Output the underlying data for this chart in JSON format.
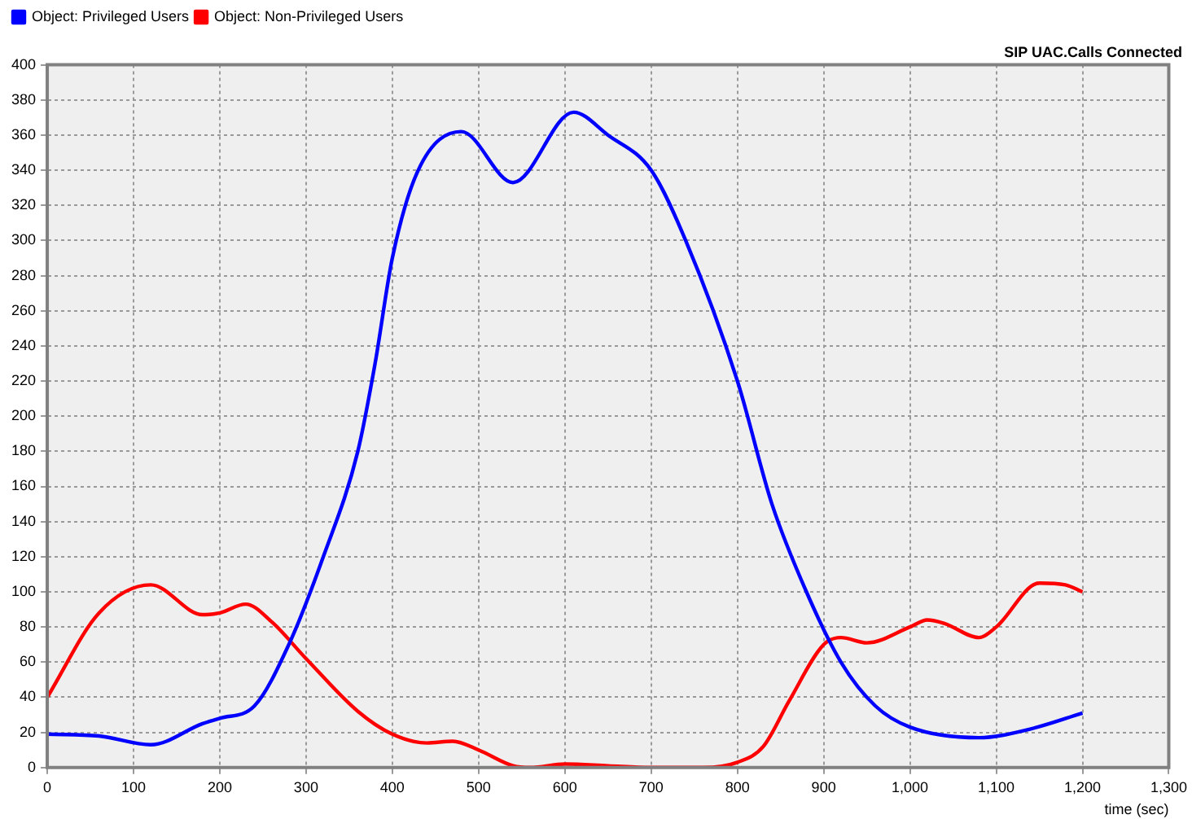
{
  "chart_data": {
    "type": "line",
    "title": "SIP UAC.Calls Connected",
    "xlabel": "time (sec)",
    "xlim": [
      0,
      1300
    ],
    "xticks": [
      0,
      100,
      200,
      300,
      400,
      500,
      600,
      700,
      800,
      900,
      {
        "value": 1000,
        "label": "1,000"
      },
      {
        "value": 1100,
        "label": "1,100"
      },
      {
        "value": 1200,
        "label": "1,200"
      },
      {
        "value": 1300,
        "label": "1,300"
      }
    ],
    "ylim": [
      0,
      400
    ],
    "yticks": [
      0,
      20,
      40,
      60,
      80,
      100,
      120,
      140,
      160,
      180,
      200,
      220,
      240,
      260,
      280,
      300,
      320,
      340,
      360,
      380,
      400
    ],
    "grid": true,
    "legend": "top left",
    "series": [
      {
        "name": "Object: Privileged Users",
        "color": "#0000ff",
        "x": [
          0,
          60,
          120,
          180,
          200,
          240,
          280,
          320,
          360,
          380,
          400,
          430,
          480,
          540,
          610,
          650,
          700,
          740,
          800,
          840,
          880,
          920,
          960,
          1000,
          1080,
          1140,
          1200
        ],
        "values": [
          19,
          18,
          13,
          25,
          28,
          35,
          70,
          120,
          180,
          230,
          290,
          340,
          362,
          333,
          373,
          360,
          340,
          300,
          220,
          150,
          100,
          60,
          35,
          23,
          17,
          22,
          31
        ]
      },
      {
        "name": "Object: Non-Privileged Users",
        "color": "#ff0000",
        "x": [
          0,
          60,
          120,
          180,
          200,
          230,
          260,
          300,
          360,
          400,
          440,
          470,
          500,
          540,
          560,
          600,
          650,
          700,
          760,
          800,
          830,
          860,
          900,
          920,
          950,
          1000,
          1020,
          1040,
          1080,
          1100,
          1150,
          1180,
          1200
        ],
        "values": [
          40,
          88,
          104,
          87,
          88,
          93,
          83,
          62,
          32,
          19,
          14,
          15,
          10,
          1,
          0,
          2,
          1,
          0,
          0,
          3,
          12,
          38,
          70,
          74,
          71,
          80,
          84,
          82,
          74,
          80,
          105,
          104,
          100
        ]
      }
    ]
  }
}
